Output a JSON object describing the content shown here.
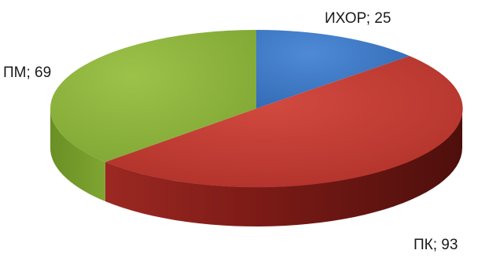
{
  "chart_data": {
    "type": "pie",
    "style": "3d",
    "categories": [
      "ИХОР",
      "ПК",
      "ПМ"
    ],
    "values": [
      25,
      93,
      69
    ],
    "colors": [
      "#3b76c4",
      "#c3372f",
      "#8bb33a"
    ],
    "side_colors": [
      "#234f8c",
      "#7e1c18",
      "#5d7d20"
    ],
    "data_labels": [
      {
        "category": "ИХОР",
        "separator": "; ",
        "value": "25"
      },
      {
        "category": "ПК",
        "separator": "; ",
        "value": "93"
      },
      {
        "category": "ПМ",
        "separator": "; ",
        "value": "69"
      }
    ],
    "title": "",
    "legend": "none"
  }
}
